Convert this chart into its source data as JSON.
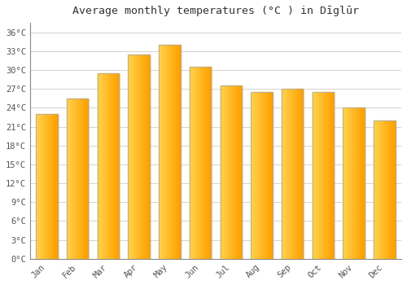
{
  "title": "Average monthly temperatures (°C ) in Dīglūr",
  "months": [
    "Jan",
    "Feb",
    "Mar",
    "Apr",
    "May",
    "Jun",
    "Jul",
    "Aug",
    "Sep",
    "Oct",
    "Nov",
    "Dec"
  ],
  "temperatures": [
    23.0,
    25.5,
    29.5,
    32.5,
    34.0,
    30.5,
    27.5,
    26.5,
    27.0,
    26.5,
    24.0,
    22.0
  ],
  "bar_color_left": "#FFD54F",
  "bar_color_right": "#FFA000",
  "bar_edge_color": "#AAAAAA",
  "background_color": "#FFFFFF",
  "grid_color": "#CCCCCC",
  "yticks": [
    0,
    3,
    6,
    9,
    12,
    15,
    18,
    21,
    24,
    27,
    30,
    33,
    36
  ],
  "ylim": [
    0,
    37.5
  ],
  "title_fontsize": 9.5,
  "tick_fontsize": 7.5,
  "font_family": "monospace"
}
